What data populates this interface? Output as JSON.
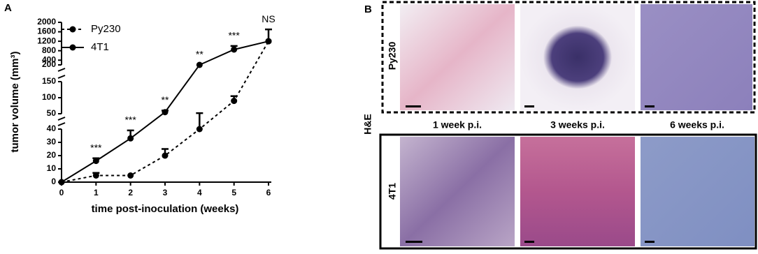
{
  "panel_labels": [
    "A",
    "B"
  ],
  "chart_data": {
    "type": "line",
    "xlabel": "time post-inoculation (weeks)",
    "ylabel": "tumor volume (mm³)",
    "x": [
      0,
      1,
      2,
      3,
      4,
      5,
      6
    ],
    "xlim": [
      0,
      6
    ],
    "xticks": [
      0,
      1,
      2,
      3,
      4,
      5,
      6
    ],
    "y_segments": [
      {
        "ylim": [
          0,
          40
        ],
        "yticks": [
          0,
          10,
          20,
          30,
          40
        ]
      },
      {
        "ylim": [
          50,
          150
        ],
        "yticks": [
          50,
          100,
          150
        ]
      },
      {
        "ylim": [
          200,
          2000
        ],
        "yticks": [
          200,
          400,
          800,
          1200,
          1600,
          2000
        ]
      }
    ],
    "series": [
      {
        "name": "Py230",
        "color": "#000000",
        "linestyle": "dashed",
        "values": [
          0,
          5,
          5,
          20,
          40,
          90,
          1200
        ],
        "errors": [
          null,
          2,
          null,
          5,
          12,
          15,
          500
        ]
      },
      {
        "name": "4T1",
        "color": "#000000",
        "linestyle": "solid",
        "values": [
          0,
          16,
          33,
          55,
          200,
          850,
          1200
        ],
        "errors": [
          null,
          2,
          6,
          5,
          null,
          150,
          null
        ]
      }
    ],
    "annotations": [
      "***",
      "***",
      "**",
      "**",
      "***",
      "NS"
    ],
    "annotation_x": [
      1,
      2,
      3,
      4,
      5,
      6
    ]
  },
  "histology": {
    "stain": "H&E",
    "rows": [
      "Py230",
      "4T1"
    ],
    "columns": [
      "1 week p.i.",
      "3 weeks p.i.",
      "6 weeks p.i."
    ]
  }
}
